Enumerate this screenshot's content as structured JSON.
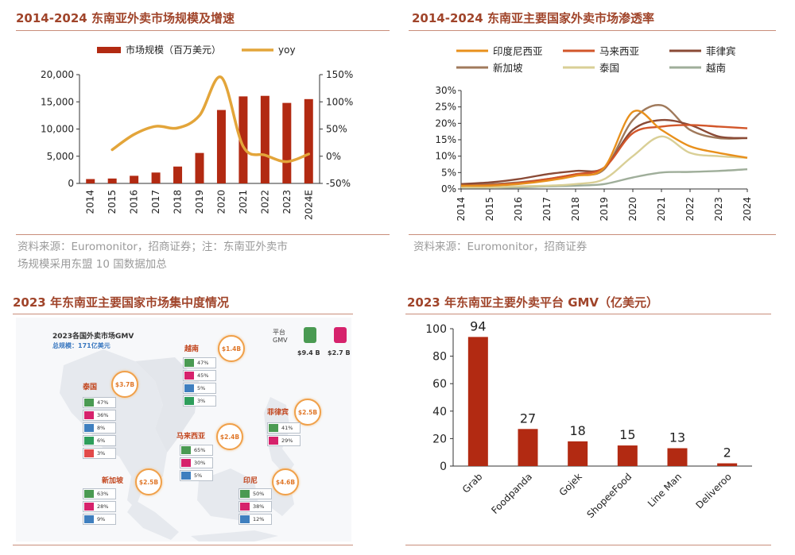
{
  "panel1": {
    "title": "2014-2024 东南亚外卖市场规模及增速",
    "source_line1": "资料来源：Euromonitor，招商证券；注：东南亚外卖市",
    "source_line2": "场规模采用东盟 10 国数据加总"
  },
  "panel2": {
    "title": "2014-2024 东南亚主要国家外卖市场渗透率",
    "source": "资料来源：Euromonitor，招商证券"
  },
  "panel3": {
    "title": "2023 年东南亚主要国家市场集中度情况",
    "map_title": "2023各国外卖市场GMV",
    "map_total": "总规模：171亿美元",
    "platform_label_1": "平台",
    "platform_label_2": "GMV",
    "grab_value": "$9.4 B",
    "foodpanda_value": "$2.7 B",
    "countries": [
      {
        "name": "越南",
        "gmv": "$1.4B",
        "shares": [
          "47%",
          "45%",
          "5%",
          "3%"
        ]
      },
      {
        "name": "泰国",
        "gmv": "$3.7B",
        "shares": [
          "47%",
          "36%",
          "8%",
          "6%",
          "3%"
        ]
      },
      {
        "name": "菲律宾",
        "gmv": "$2.5B",
        "shares": [
          "41%",
          "29%"
        ]
      },
      {
        "name": "马来西亚",
        "gmv": "$2.4B",
        "shares": [
          "65%",
          "30%",
          "5%"
        ]
      },
      {
        "name": "新加坡",
        "gmv": "$2.5B",
        "shares": [
          "63%",
          "28%",
          "9%"
        ]
      },
      {
        "name": "印尼",
        "gmv": "$4.6B",
        "shares": [
          "50%",
          "38%",
          "12%"
        ]
      }
    ]
  },
  "panel4": {
    "title": "2023 年东南亚主要外卖平台 GMV（亿美元）"
  },
  "colors": {
    "bar": "#b22a12",
    "yoy": "#e3a53a",
    "indonesia": "#e8901c",
    "malaysia": "#d2562a",
    "philippines": "#8a4a36",
    "singapore": "#a07a5c",
    "thailand": "#d9cf96",
    "vietnam": "#9fae9a",
    "title": "#a0442a",
    "grab": "#4a9a52",
    "foodpanda": "#d6226c"
  },
  "chart_data": [
    {
      "type": "bar",
      "categories": [
        "2014",
        "2015",
        "2016",
        "2017",
        "2018",
        "2019",
        "2020",
        "2021",
        "2022",
        "2023",
        "2024E"
      ],
      "series": [
        {
          "name": "市场规模（百万美元）",
          "type": "bar",
          "axis": "left",
          "values": [
            800,
            900,
            1400,
            2000,
            3100,
            5600,
            13500,
            16000,
            16100,
            14800,
            15500
          ]
        },
        {
          "name": "yoy",
          "type": "line",
          "axis": "right",
          "values": [
            null,
            12,
            40,
            55,
            52,
            75,
            145,
            18,
            2,
            -10,
            4
          ]
        }
      ],
      "yticks_left": [
        "0",
        "5,000",
        "10,000",
        "15,000",
        "20,000"
      ],
      "yticks_right": [
        "-50%",
        "0%",
        "50%",
        "100%",
        "150%"
      ],
      "ylim_left": [
        0,
        20000
      ],
      "ylim_right": [
        -50,
        150
      ],
      "legend": "top"
    },
    {
      "type": "line",
      "categories": [
        "2014",
        "2015",
        "2016",
        "2017",
        "2018",
        "2019",
        "2020",
        "2021",
        "2022",
        "2023",
        "2024"
      ],
      "yticks": [
        "0%",
        "5%",
        "10%",
        "15%",
        "20%",
        "25%",
        "30%"
      ],
      "ylim": [
        0,
        30
      ],
      "legend": "top",
      "series": [
        {
          "name": "印度尼西亚",
          "values": [
            1.0,
            1.0,
            1.5,
            2.5,
            4.0,
            6.5,
            23.5,
            18.0,
            13.0,
            11.0,
            9.5
          ]
        },
        {
          "name": "马来西亚",
          "values": [
            1.0,
            1.2,
            1.8,
            3.0,
            4.5,
            6.5,
            17.0,
            19.0,
            19.5,
            19.0,
            18.5
          ]
        },
        {
          "name": "菲律宾",
          "values": [
            1.5,
            2.0,
            3.0,
            4.5,
            5.5,
            6.5,
            18.0,
            21.0,
            19.5,
            16.0,
            15.5
          ]
        },
        {
          "name": "新加坡",
          "values": [
            1.5,
            1.5,
            2.0,
            3.0,
            4.5,
            6.0,
            21.0,
            25.5,
            18.0,
            15.5,
            15.5
          ]
        },
        {
          "name": "泰国",
          "values": [
            0.5,
            0.5,
            0.8,
            1.0,
            1.5,
            3.0,
            10.0,
            16.0,
            11.0,
            10.0,
            9.5
          ]
        },
        {
          "name": "越南",
          "values": [
            0.5,
            0.5,
            0.5,
            0.8,
            1.0,
            1.5,
            3.5,
            5.0,
            5.2,
            5.5,
            6.0
          ]
        }
      ]
    },
    {
      "type": "bar",
      "categories": [
        "Grab",
        "Foodpanda",
        "Gojek",
        "ShopeeFood",
        "Line Man",
        "Deliveroo"
      ],
      "values": [
        94,
        27,
        18,
        15,
        13,
        2
      ],
      "data_labels": [
        "94",
        "27",
        "18",
        "15",
        "13",
        "2"
      ],
      "yticks": [
        "0",
        "20",
        "40",
        "60",
        "80",
        "100"
      ],
      "ylim": [
        0,
        100
      ]
    }
  ]
}
